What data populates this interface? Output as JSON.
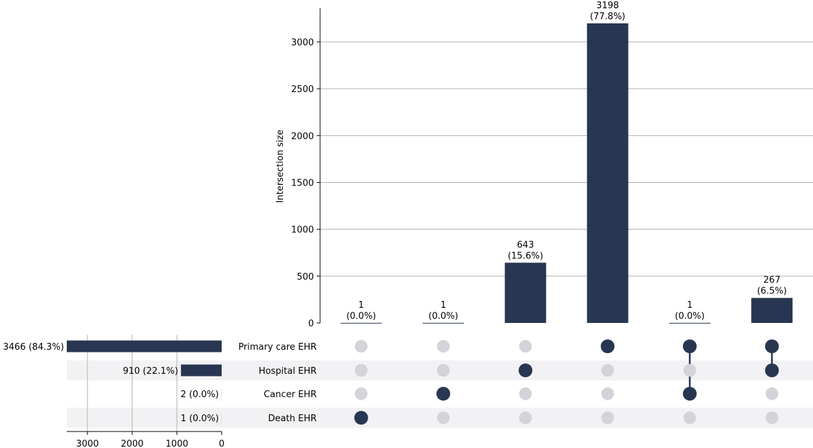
{
  "chart_data": {
    "type": "bar",
    "subtype": "upset",
    "title": "",
    "ylabel": "Intersection size",
    "ylim": [
      0,
      3350
    ],
    "yticks": [
      0,
      500,
      1000,
      1500,
      2000,
      2500,
      3000
    ],
    "grid": true,
    "sets": [
      "Primary care EHR",
      "Hospital EHR",
      "Cancer EHR",
      "Death EHR"
    ],
    "set_sizes": [
      3466,
      910,
      2,
      1
    ],
    "set_size_labels": [
      "3466 (84.3%)",
      "910 (22.1%)",
      "2 (0.0%)",
      "1 (0.0%)"
    ],
    "set_size_xlim": [
      3466,
      0
    ],
    "set_size_ticks": [
      3000,
      2000,
      1000,
      0
    ],
    "intersections": [
      {
        "members": [
          "Death EHR"
        ],
        "value": 1,
        "label_count": "1",
        "label_pct": "(0.0%)"
      },
      {
        "members": [
          "Cancer EHR"
        ],
        "value": 1,
        "label_count": "1",
        "label_pct": "(0.0%)"
      },
      {
        "members": [
          "Hospital EHR"
        ],
        "value": 643,
        "label_count": "643",
        "label_pct": "(15.6%)"
      },
      {
        "members": [
          "Primary care EHR"
        ],
        "value": 3198,
        "label_count": "3198",
        "label_pct": "(77.8%)"
      },
      {
        "members": [
          "Primary care EHR",
          "Cancer EHR"
        ],
        "value": 1,
        "label_count": "1",
        "label_pct": "(0.0%)"
      },
      {
        "members": [
          "Primary care EHR",
          "Hospital EHR"
        ],
        "value": 267,
        "label_count": "267",
        "label_pct": "(6.5%)"
      }
    ],
    "colors": {
      "bar": "#283652",
      "dot_active": "#283652",
      "dot_inactive": "#d2d4d9",
      "stripe": "#f2f2f4",
      "grid": "#b0b0b0"
    }
  }
}
